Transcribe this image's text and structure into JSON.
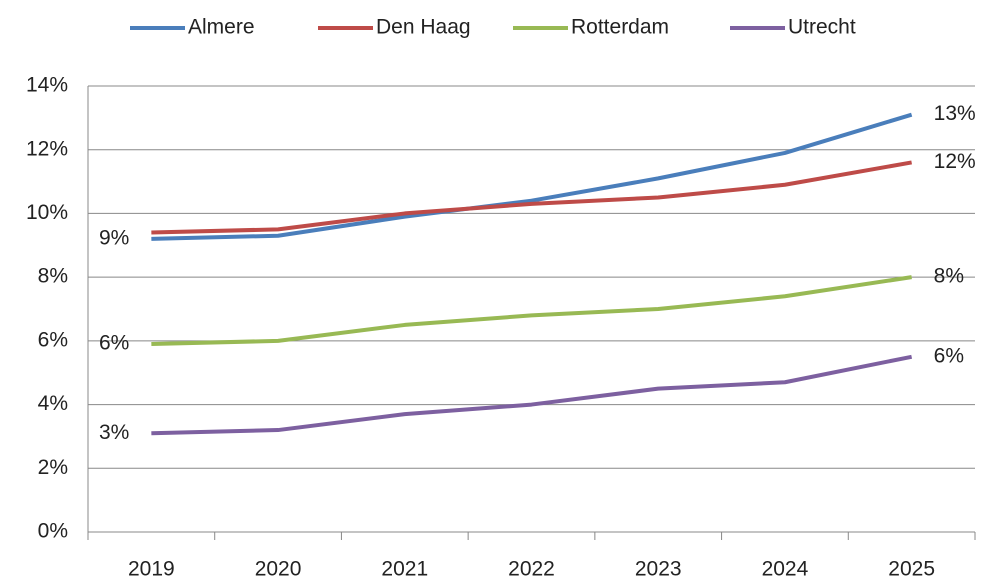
{
  "chart_data": {
    "type": "line",
    "categories": [
      "2019",
      "2020",
      "2021",
      "2022",
      "2023",
      "2024",
      "2025"
    ],
    "series": [
      {
        "name": "Almere",
        "color": "#4a7ebb",
        "values": [
          9.2,
          9.3,
          9.9,
          10.4,
          11.1,
          11.9,
          13.1
        ],
        "value_labels": [
          "9%",
          null,
          null,
          null,
          null,
          null,
          "13%"
        ]
      },
      {
        "name": "Den Haag",
        "color": "#be4b48",
        "values": [
          9.4,
          9.5,
          10.0,
          10.3,
          10.5,
          10.9,
          11.6
        ],
        "value_labels": [
          null,
          null,
          null,
          null,
          null,
          null,
          "12%"
        ]
      },
      {
        "name": "Rotterdam",
        "color": "#98b954",
        "values": [
          5.9,
          6.0,
          6.5,
          6.8,
          7.0,
          7.4,
          8.0
        ],
        "value_labels": [
          "6%",
          null,
          null,
          null,
          null,
          null,
          "8%"
        ]
      },
      {
        "name": "Utrecht",
        "color": "#7d60a0",
        "values": [
          3.1,
          3.2,
          3.7,
          4.0,
          4.5,
          4.7,
          5.5
        ],
        "value_labels": [
          "3%",
          null,
          null,
          null,
          null,
          null,
          "6%"
        ]
      }
    ],
    "ylim": [
      0,
      14
    ],
    "yticks": [
      {
        "value": 0,
        "label": "0%"
      },
      {
        "value": 2,
        "label": "2%"
      },
      {
        "value": 4,
        "label": "4%"
      },
      {
        "value": 6,
        "label": "6%"
      },
      {
        "value": 8,
        "label": "8%"
      },
      {
        "value": 10,
        "label": "10%"
      },
      {
        "value": 12,
        "label": "12%"
      },
      {
        "value": 14,
        "label": "14%"
      }
    ],
    "grid": true,
    "legend": "top"
  }
}
